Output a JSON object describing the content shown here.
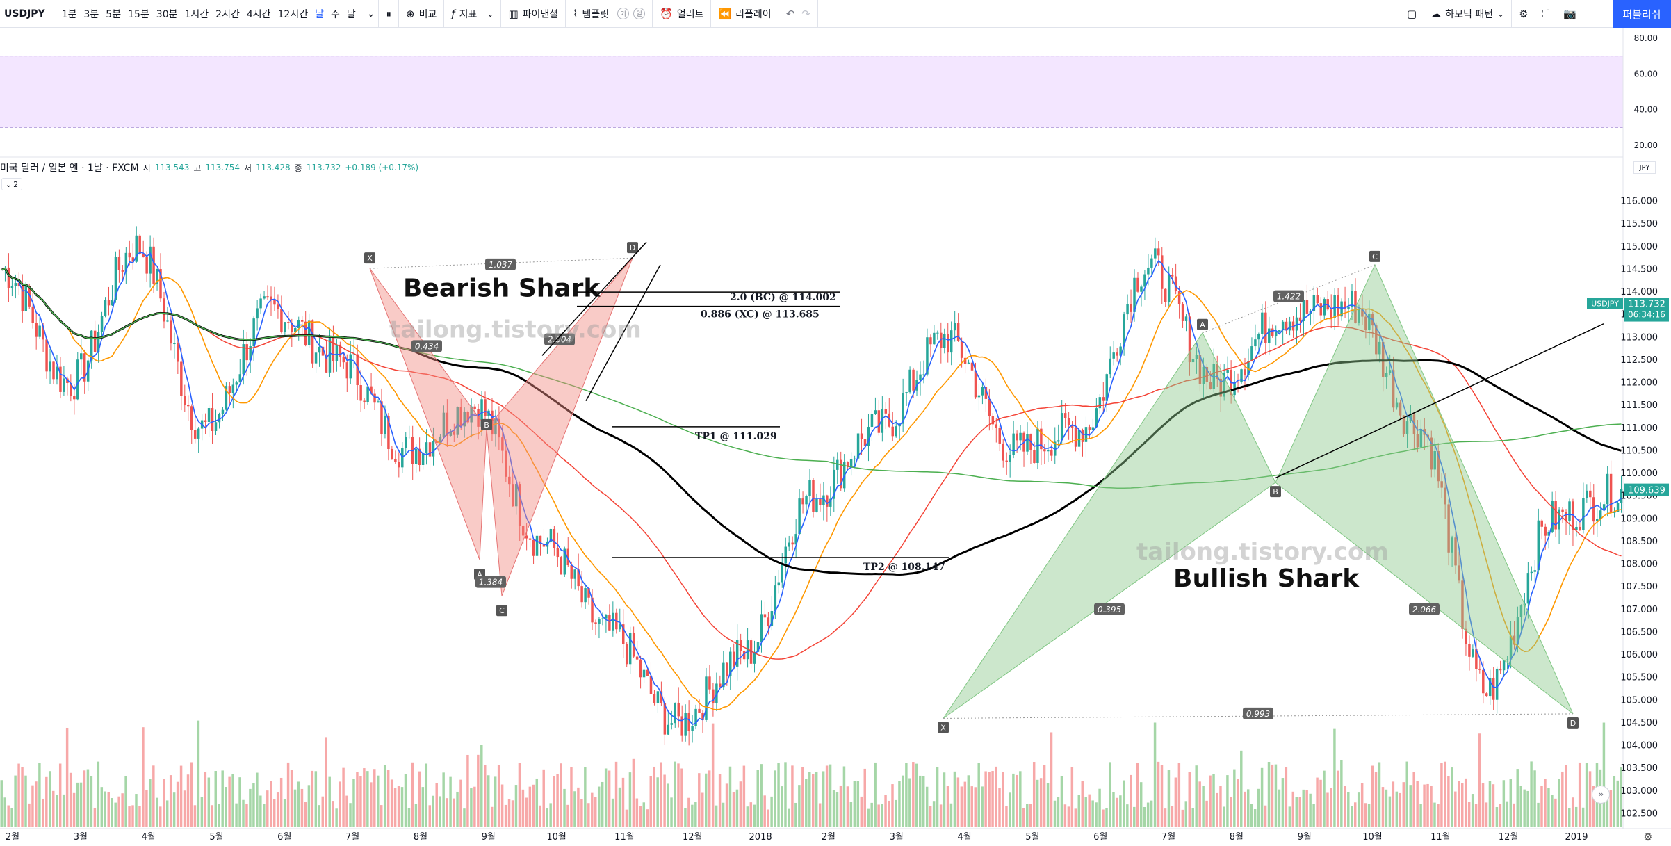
{
  "toolbar": {
    "symbol": "USDJPY",
    "intervals": [
      "1분",
      "3분",
      "5분",
      "15분",
      "30분",
      "1시간",
      "2시간",
      "4시간",
      "12시간",
      "날",
      "주",
      "달"
    ],
    "active_interval": "날",
    "compare_label": "비교",
    "indicators_label": "지표",
    "pine_label": "파이낸셜",
    "templates_label": "템플릿",
    "template_badge_1": "기",
    "template_badge_2": "일",
    "alert_label": "얼러트",
    "replay_label": "리플레이",
    "layout_label": "하모닉 패턴",
    "publish_label": "퍼블리쉬"
  },
  "legend": {
    "title": "미국 달러 / 일본 엔 · 1날 · FXCM",
    "open_label": "시",
    "open": "113.543",
    "high_label": "고",
    "high": "113.754",
    "low_label": "저",
    "low": "113.428",
    "close_label": "종",
    "close": "113.732",
    "change": "+0.189 (+0.17%)",
    "collapse": "2"
  },
  "currency_badge": "JPY",
  "colors": {
    "bull": "#26a69a",
    "bear": "#ef5350",
    "rsi_band": "#f3e6ff",
    "bearish_pattern": "#f28b82",
    "bullish_pattern": "#8fc98f",
    "accent": "#2962ff"
  },
  "chart_data": {
    "type": "candlestick",
    "symbol": "USDJPY",
    "timeframe": "1D",
    "price_axis": [
      "116.000",
      "115.500",
      "115.000",
      "114.500",
      "114.000",
      "113.500",
      "113.000",
      "112.500",
      "112.000",
      "111.500",
      "111.000",
      "110.500",
      "110.000",
      "109.500",
      "109.000",
      "108.500",
      "108.000",
      "107.500",
      "107.000",
      "106.500",
      "106.000",
      "105.500",
      "105.000",
      "104.500",
      "104.000",
      "103.500",
      "103.000",
      "102.500"
    ],
    "rsi_axis": [
      "80.00",
      "60.00",
      "40.00",
      "20.00"
    ],
    "rsi_band": [
      30,
      70
    ],
    "time_axis": [
      "2월",
      "3월",
      "4월",
      "5월",
      "6월",
      "7월",
      "8월",
      "9월",
      "10월",
      "11월",
      "12월",
      "2018",
      "2월",
      "3월",
      "4월",
      "5월",
      "6월",
      "7월",
      "8월",
      "9월",
      "10월",
      "11월",
      "12월",
      "2019"
    ],
    "last_price": "113.732",
    "countdown": "06:34:16",
    "last_price_label": "USDJPY",
    "ma_value": "109.639",
    "anchor_prices": [
      114.5,
      112.0,
      115.0,
      111.0,
      113.6,
      112.5,
      110.5,
      111.5,
      108.5,
      106.5,
      104.5,
      106.0,
      109.5,
      111.0,
      113.0,
      110.5,
      111.0,
      114.6,
      112.0,
      113.5,
      113.7,
      111.0,
      105.2,
      109.0,
      109.6
    ],
    "bearish_shark": {
      "label": "Bearish Shark",
      "points": [
        {
          "name": "X",
          "price": 114.52
        },
        {
          "name": "A",
          "price": 108.1
        },
        {
          "name": "B",
          "price": 111.0
        },
        {
          "name": "C",
          "price": 107.3
        },
        {
          "name": "D",
          "price": 114.75
        }
      ],
      "ratios": [
        "1.037",
        "0.434",
        "1.384",
        "2.004"
      ],
      "levels": [
        {
          "label": "2.0 (BC) @ 114.002",
          "price": 114.0
        },
        {
          "label": "0.886 (XC) @ 113.685",
          "price": 113.685
        },
        {
          "label": "TP1 @ 111.029",
          "price": 111.029
        },
        {
          "label": "TP2 @ 108.147",
          "price": 108.147
        }
      ]
    },
    "bullish_shark": {
      "label": "Bullish Shark",
      "points": [
        {
          "name": "X",
          "price": 104.6
        },
        {
          "name": "A",
          "price": 113.1
        },
        {
          "name": "B",
          "price": 109.8
        },
        {
          "name": "C",
          "price": 114.6
        },
        {
          "name": "D",
          "price": 104.7
        }
      ],
      "ratios": [
        "0.395",
        "1.422",
        "2.066",
        "0.993"
      ]
    },
    "watermark": "tailong.tistory.com"
  }
}
